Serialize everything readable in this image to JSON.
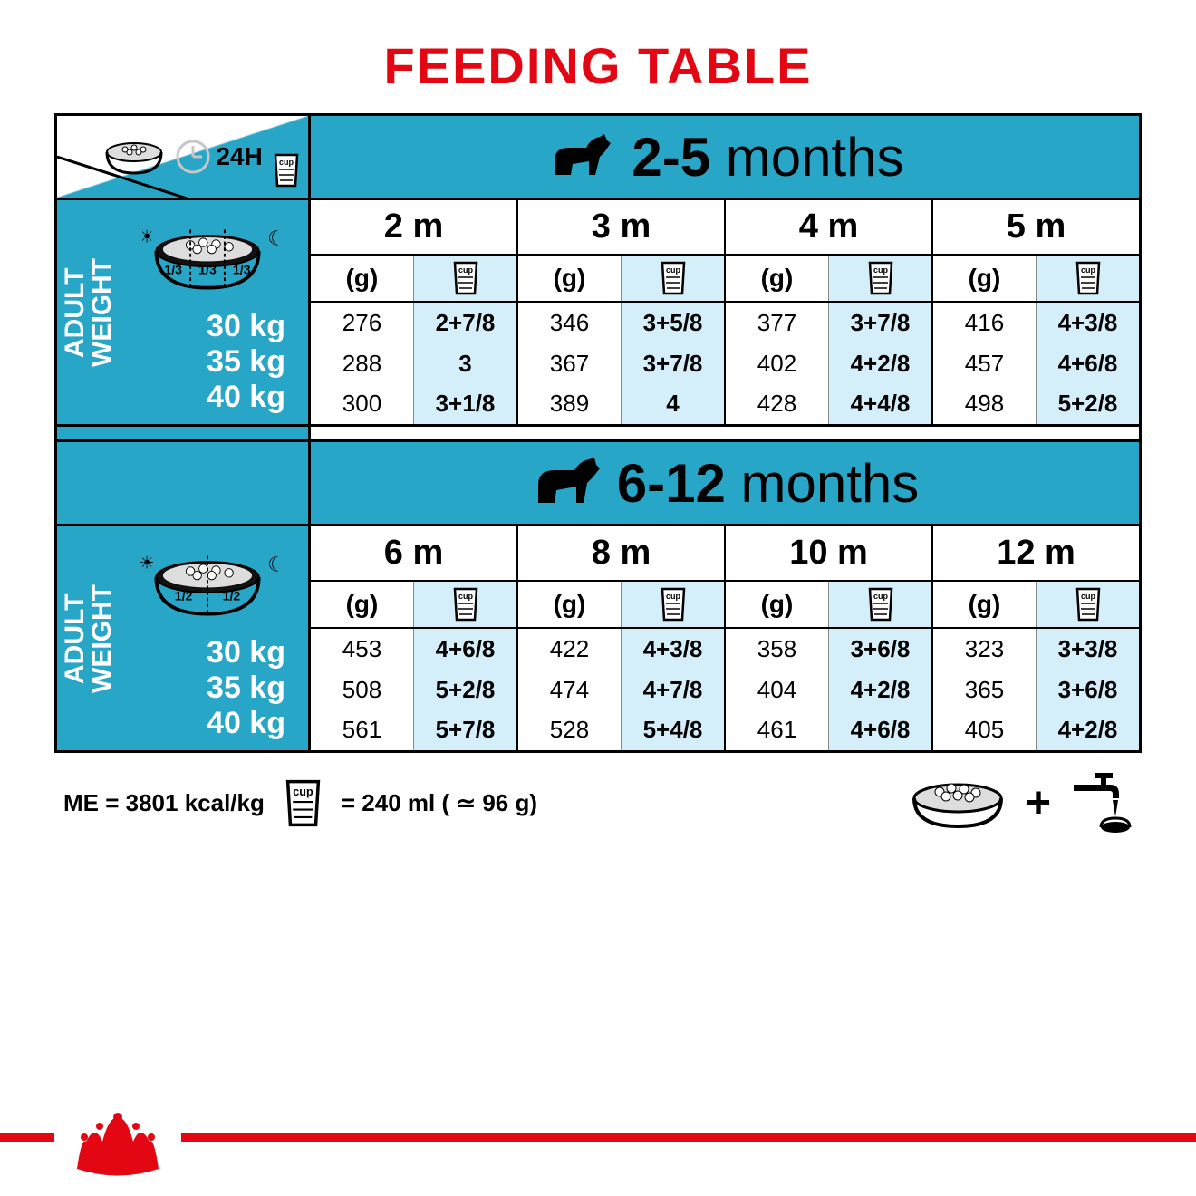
{
  "title": "FEEDING TABLE",
  "title_color": "#e30613",
  "brand_color": "#27a6c8",
  "light_blue": "#d5effa",
  "clock_label": "24H",
  "left_label_line1": "ADULT",
  "left_label_line2": "WEIGHT",
  "unit_g_label": "(g)",
  "unit_cup_label": "cup",
  "sections": [
    {
      "age_range_bold": "2-5",
      "age_range_rest": " months",
      "bowl_portions": [
        "1/3",
        "1/3",
        "1/3"
      ],
      "months": [
        "2 m",
        "3 m",
        "4 m",
        "5 m"
      ],
      "weights": [
        "30 kg",
        "35 kg",
        "40 kg"
      ],
      "rows": [
        [
          {
            "g": "276",
            "c": "2+7/8"
          },
          {
            "g": "346",
            "c": "3+5/8"
          },
          {
            "g": "377",
            "c": "3+7/8"
          },
          {
            "g": "416",
            "c": "4+3/8"
          }
        ],
        [
          {
            "g": "288",
            "c": "3"
          },
          {
            "g": "367",
            "c": "3+7/8"
          },
          {
            "g": "402",
            "c": "4+2/8"
          },
          {
            "g": "457",
            "c": "4+6/8"
          }
        ],
        [
          {
            "g": "300",
            "c": "3+1/8"
          },
          {
            "g": "389",
            "c": "4"
          },
          {
            "g": "428",
            "c": "4+4/8"
          },
          {
            "g": "498",
            "c": "5+2/8"
          }
        ]
      ]
    },
    {
      "age_range_bold": "6-12",
      "age_range_rest": " months",
      "bowl_portions": [
        "1/2",
        "1/2"
      ],
      "months": [
        "6 m",
        "8 m",
        "10 m",
        "12 m"
      ],
      "weights": [
        "30 kg",
        "35 kg",
        "40 kg"
      ],
      "rows": [
        [
          {
            "g": "453",
            "c": "4+6/8"
          },
          {
            "g": "422",
            "c": "4+3/8"
          },
          {
            "g": "358",
            "c": "3+6/8"
          },
          {
            "g": "323",
            "c": "3+3/8"
          }
        ],
        [
          {
            "g": "508",
            "c": "5+2/8"
          },
          {
            "g": "474",
            "c": "4+7/8"
          },
          {
            "g": "404",
            "c": "4+2/8"
          },
          {
            "g": "365",
            "c": "3+6/8"
          }
        ],
        [
          {
            "g": "561",
            "c": "5+7/8"
          },
          {
            "g": "528",
            "c": "5+4/8"
          },
          {
            "g": "461",
            "c": "4+6/8"
          },
          {
            "g": "405",
            "c": "4+2/8"
          }
        ]
      ]
    }
  ],
  "footer": {
    "me_text": "ME = 3801 kcal/kg",
    "cup_eq": "= 240 ml ( ≃ 96 g)",
    "plus": "+"
  }
}
